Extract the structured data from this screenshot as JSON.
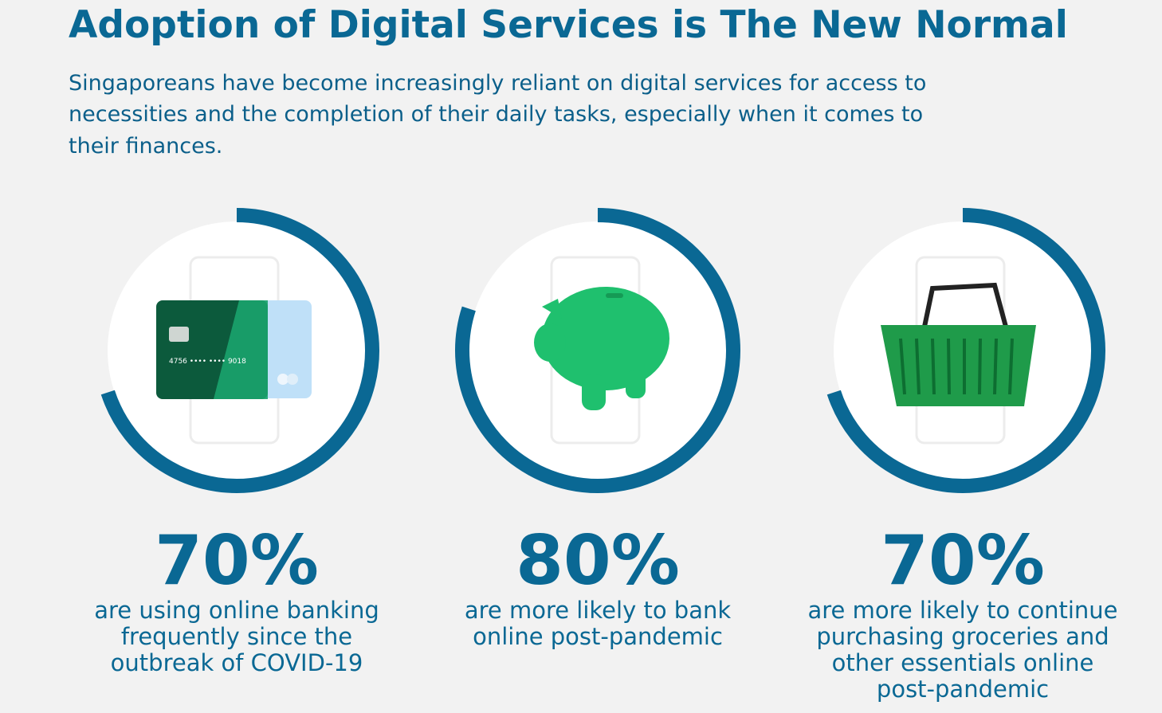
{
  "header": {
    "title": "Adoption of Digital Services is The New Normal",
    "subtitle": [
      "Singaporeans have become increasingly reliant on digital services for access to",
      "necessities and the completion of their daily tasks, especially when it comes to",
      "their finances."
    ]
  },
  "stats": [
    {
      "percent": 70,
      "label": "70%",
      "caption": [
        "are using online banking",
        "frequently since the",
        "outbreak of COVID-19"
      ],
      "card_number": "4756  ••••  ••••  9018"
    },
    {
      "percent": 80,
      "label": "80%",
      "caption": [
        "are more likely to bank",
        "online post-pandemic"
      ]
    },
    {
      "percent": 70,
      "label": "70%",
      "caption": [
        "are more likely to continue",
        "purchasing groceries and",
        "other essentials online",
        "post-pandemic"
      ]
    }
  ],
  "ring_color": "#0a6894"
}
